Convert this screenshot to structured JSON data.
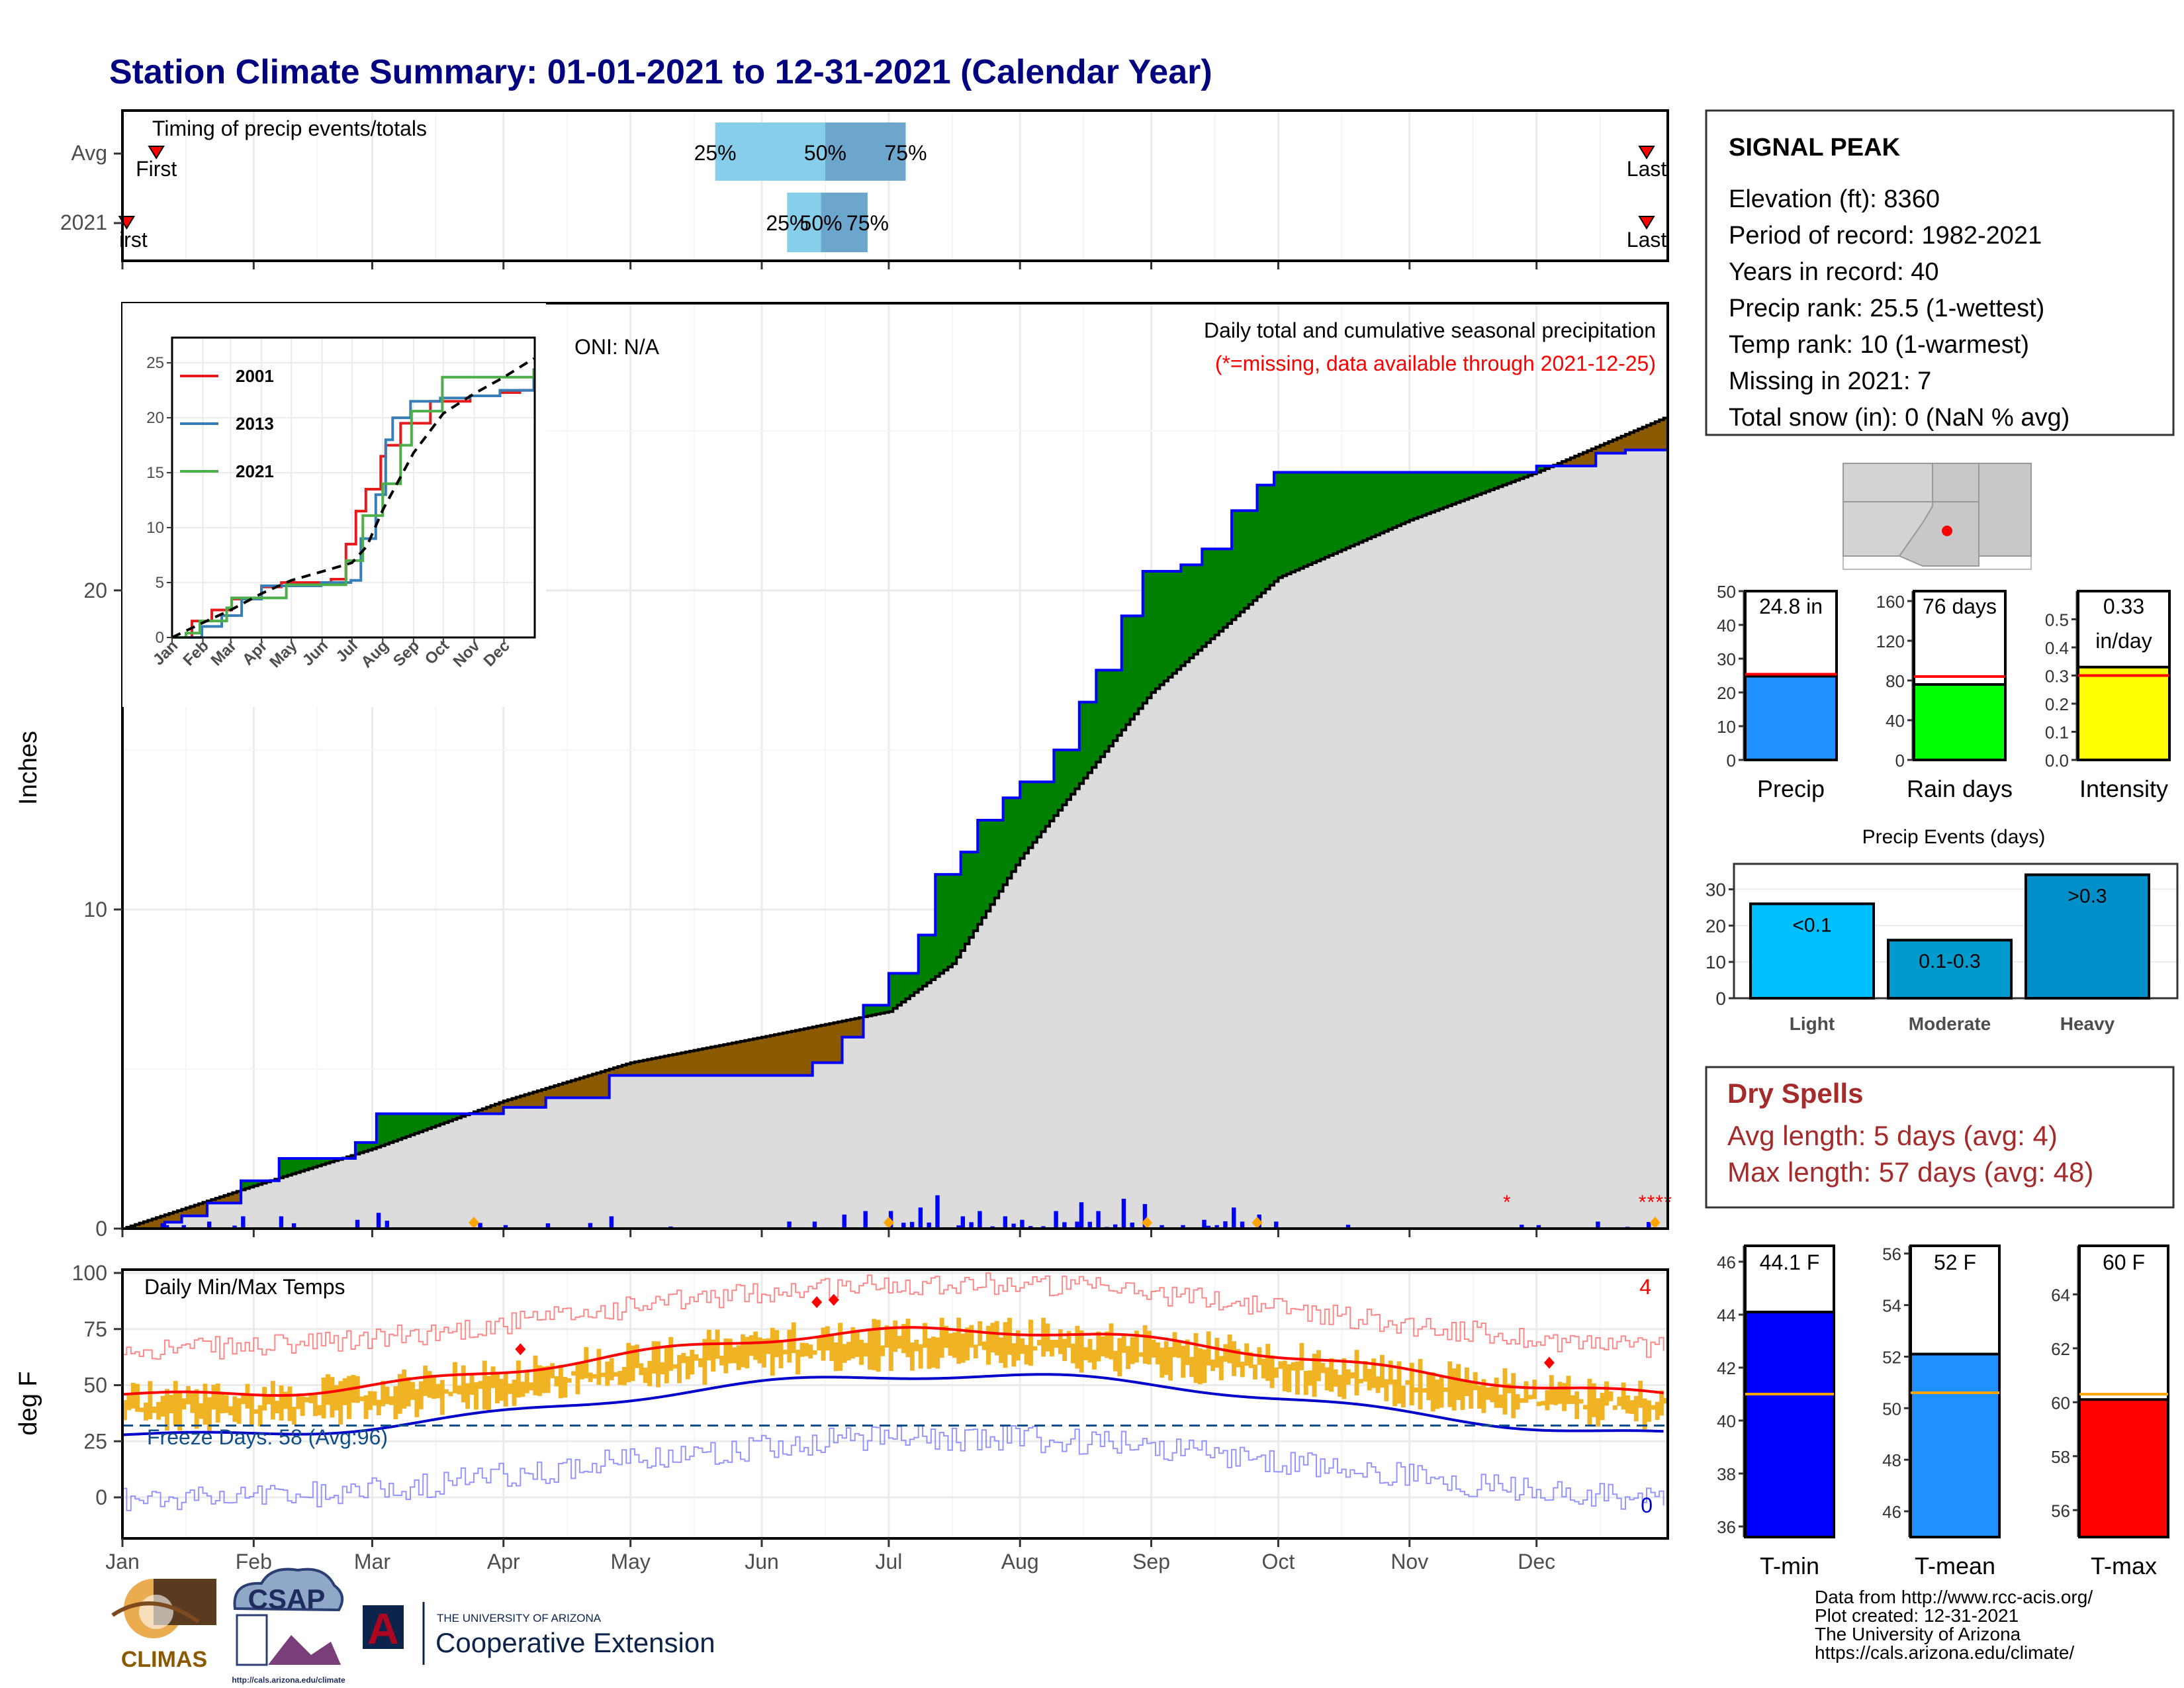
{
  "title": "Station Climate Summary: 01-01-2021 to 12-31-2021 (Calendar Year)",
  "timing": {
    "label": "Timing of precip events/totals",
    "rows": [
      "Avg",
      "2021"
    ],
    "avg": {
      "q25": "2021-05-21",
      "q50": "2021-06-16",
      "q75": "2021-07-05",
      "first": "2021-01-09",
      "last": "2021-12-27"
    },
    "y2021": {
      "q25": "2021-06-07",
      "q50": "2021-06-15",
      "q75": "2021-06-26",
      "first": "2021-01-02",
      "last": "2021-12-27"
    },
    "pct_labels": [
      "25%",
      "50%",
      "75%"
    ],
    "first_label": "First",
    "first_label_2021": "irst",
    "last_label": "Last",
    "colors": {
      "light": "#87ceeb",
      "dark": "#6ca6cd",
      "marker": "#ff0000"
    }
  },
  "precip": {
    "ylabel": "Inches",
    "oni": "ONI: N/A",
    "note1": "Daily total and cumulative seasonal precipitation",
    "note2": "(*=missing, data available through 2021-12-25)",
    "yticks": [
      0,
      10,
      20
    ],
    "ylim": [
      0,
      29
    ],
    "colors": {
      "deficit": "#8b5a00",
      "surplus": "#008000",
      "fill": "#dcdcdc",
      "obs": "#0000ff"
    }
  },
  "inset": {
    "series": [
      {
        "name": "2001",
        "color": "#e41a1c"
      },
      {
        "name": "2013",
        "color": "#377eb8"
      },
      {
        "name": "2021",
        "color": "#4daf4a"
      }
    ],
    "yticks": [
      0,
      5,
      10,
      15,
      20,
      25
    ],
    "xticks": [
      "Jan",
      "Feb",
      "Mar",
      "Apr",
      "May",
      "Jun",
      "Jul",
      "Aug",
      "Sep",
      "Oct",
      "Nov",
      "Dec"
    ]
  },
  "temps": {
    "label": "Daily Min/Max Temps",
    "ylabel": "deg F",
    "yticks": [
      0,
      25,
      50,
      75,
      100
    ],
    "freeze": "Freeze Days: 58 (Avg:96)",
    "count_top": "4",
    "count_bottom": "0",
    "months": [
      "Jan",
      "Feb",
      "Mar",
      "Apr",
      "May",
      "Jun",
      "Jul",
      "Aug",
      "Sep",
      "Oct",
      "Nov",
      "Dec"
    ]
  },
  "station": {
    "name": "SIGNAL PEAK",
    "lines": [
      "Elevation (ft): 8360",
      "Period of record: 1982-2021",
      "Years in record: 40",
      "Precip rank: 25.5 (1-wettest)",
      "Temp rank: 10 (1-warmest)",
      "Missing in 2021: 7",
      "Total snow (in): 0 (NaN % avg)"
    ]
  },
  "mini_bars": [
    {
      "name": "Precip",
      "value": 24.8,
      "avg": 25.4,
      "label": "24.8 in",
      "yticks": [
        0,
        10,
        20,
        30,
        40,
        50
      ],
      "ylim": [
        0,
        50
      ],
      "color": "#1e90ff"
    },
    {
      "name": "Rain days",
      "value": 76,
      "avg": 84,
      "label": "76 days",
      "yticks": [
        0,
        40,
        80,
        120,
        160
      ],
      "ylim": [
        0,
        170
      ],
      "color": "#00ff00"
    },
    {
      "name": "Intensity",
      "value": 0.33,
      "avg": 0.3,
      "label": "0.33",
      "label2": "in/day",
      "yticks": [
        "0.0",
        "0.1",
        "0.2",
        "0.3",
        "0.4",
        "0.5"
      ],
      "ylim": [
        0,
        0.6
      ],
      "color": "#ffff00"
    }
  ],
  "events": {
    "title": "Precip Events (days)",
    "yticks": [
      0,
      10,
      20,
      30
    ],
    "categories": [
      "Light",
      "Moderate",
      "Heavy"
    ],
    "values": [
      26,
      16,
      34
    ],
    "labels": [
      "<0.1",
      "0.1-0.3",
      ">0.3"
    ],
    "colors": [
      "#00bfff",
      "#009acd",
      "#008fc8"
    ]
  },
  "dry": {
    "title": "Dry Spells",
    "line1": "Avg length: 5 days (avg: 4)",
    "line2": "Max length: 57 days (avg: 48)",
    "color": "#a52a2a"
  },
  "temp_bars": [
    {
      "name": "T-min",
      "value": 44.1,
      "avg": 41,
      "label": "44.1 F",
      "yticks": [
        36,
        38,
        40,
        42,
        44,
        46
      ],
      "ylim": [
        35.6,
        46.6
      ],
      "color": "#0000ff"
    },
    {
      "name": "T-mean",
      "value": 52.1,
      "avg": 50.6,
      "label": "52 F",
      "yticks": [
        46,
        48,
        50,
        52,
        54,
        56
      ],
      "ylim": [
        45,
        56.3
      ],
      "color": "#1e90ff"
    },
    {
      "name": "T-max",
      "value": 60.1,
      "avg": 60.3,
      "label": "60 F",
      "yticks": [
        56,
        58,
        60,
        62,
        64
      ],
      "ylim": [
        55,
        65.8
      ],
      "color": "#ff0000"
    }
  ],
  "footer": {
    "lines": [
      "Data from http://www.rcc-acis.org/",
      "Plot created: 12-31-2021",
      "The University of Arizona",
      "https://cals.arizona.edu/climate/"
    ],
    "climas": "CLIMAS",
    "csap": "CSAP",
    "csap_url": "http://cals.arizona.edu/climate",
    "ua_small": "THE UNIVERSITY OF ARIZONA",
    "ua_big": "Cooperative Extension",
    "ua_letter": "A"
  }
}
